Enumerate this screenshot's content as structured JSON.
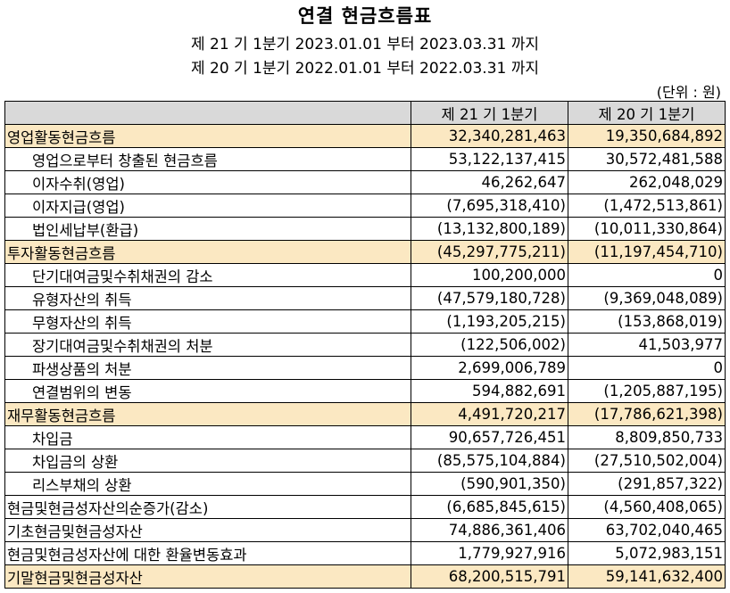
{
  "title": "연결 현금흐름표",
  "periods": [
    "제 21 기 1분기 2023.01.01 부터 2023.03.31 까지",
    "제 20 기 1분기 2022.01.01 부터 2022.03.31 까지"
  ],
  "unit": "(단위 : 원)",
  "table": {
    "headers": [
      "",
      "제 21 기 1분기",
      "제 20 기 1분기"
    ],
    "rows": [
      {
        "label": "영업활동현금흐름",
        "v1": "32,340,281,463",
        "v2": "19,350,684,892",
        "section": true,
        "indent": false
      },
      {
        "label": "영업으로부터 창출된 현금흐름",
        "v1": "53,122,137,415",
        "v2": "30,572,481,588",
        "section": false,
        "indent": true
      },
      {
        "label": "이자수취(영업)",
        "v1": "46,262,647",
        "v2": "262,048,029",
        "section": false,
        "indent": true
      },
      {
        "label": "이자지급(영업)",
        "v1": "(7,695,318,410)",
        "v2": "(1,472,513,861)",
        "section": false,
        "indent": true
      },
      {
        "label": "법인세납부(환급)",
        "v1": "(13,132,800,189)",
        "v2": "(10,011,330,864)",
        "section": false,
        "indent": true
      },
      {
        "label": "투자활동현금흐름",
        "v1": "(45,297,775,211)",
        "v2": "(11,197,454,710)",
        "section": true,
        "indent": false
      },
      {
        "label": "단기대여금및수취채권의 감소",
        "v1": "100,200,000",
        "v2": "0",
        "section": false,
        "indent": true
      },
      {
        "label": "유형자산의 취득",
        "v1": "(47,579,180,728)",
        "v2": "(9,369,048,089)",
        "section": false,
        "indent": true
      },
      {
        "label": "무형자산의 취득",
        "v1": "(1,193,205,215)",
        "v2": "(153,868,019)",
        "section": false,
        "indent": true
      },
      {
        "label": "장기대여금및수취채권의 처분",
        "v1": "(122,506,002)",
        "v2": "41,503,977",
        "section": false,
        "indent": true
      },
      {
        "label": "파생상품의 처분",
        "v1": "2,699,006,789",
        "v2": "0",
        "section": false,
        "indent": true
      },
      {
        "label": "연결범위의 변동",
        "v1": "594,882,691",
        "v2": "(1,205,887,195)",
        "section": false,
        "indent": true
      },
      {
        "label": "재무활동현금흐름",
        "v1": "4,491,720,217",
        "v2": "(17,786,621,398)",
        "section": true,
        "indent": false
      },
      {
        "label": "차입금",
        "v1": "90,657,726,451",
        "v2": "8,809,850,733",
        "section": false,
        "indent": true
      },
      {
        "label": "차입금의 상환",
        "v1": "(85,575,104,884)",
        "v2": "(27,510,502,004)",
        "section": false,
        "indent": true
      },
      {
        "label": "리스부채의 상환",
        "v1": "(590,901,350)",
        "v2": "(291,857,322)",
        "section": false,
        "indent": true
      },
      {
        "label": "현금및현금성자산의순증가(감소)",
        "v1": "(6,685,845,615)",
        "v2": "(4,560,408,065)",
        "section": false,
        "indent": false
      },
      {
        "label": "기초현금및현금성자산",
        "v1": "74,886,361,406",
        "v2": "63,702,040,465",
        "section": false,
        "indent": false
      },
      {
        "label": "현금및현금성자산에 대한 환율변동효과",
        "v1": "1,779,927,916",
        "v2": "5,072,983,151",
        "section": false,
        "indent": false
      },
      {
        "label": "기말현금및현금성자산",
        "v1": "68,200,515,791",
        "v2": "59,141,632,400",
        "section": true,
        "indent": false
      }
    ]
  }
}
